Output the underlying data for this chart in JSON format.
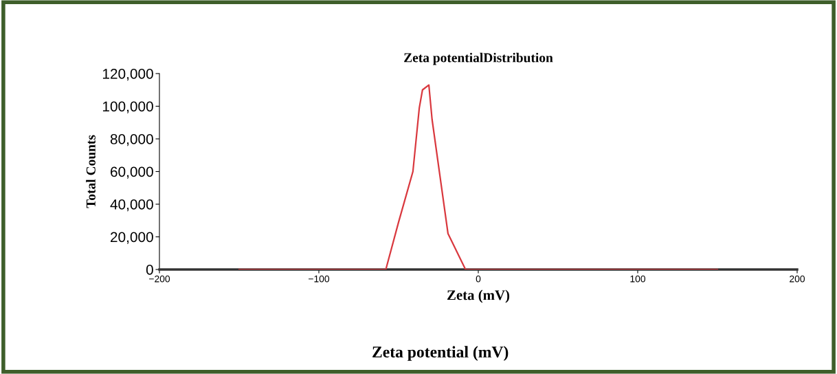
{
  "chart_data": {
    "type": "line",
    "title": "Zeta potentialDistribution",
    "xlabel": "Zeta (mV)",
    "ylabel": "Total Counts",
    "annotations": [
      "Zeta potential (mV)"
    ],
    "series": [
      {
        "color": "#d9383e",
        "x": [
          -150,
          -58,
          -50,
          -41,
          -37,
          -35,
          -31,
          -29,
          -24,
          -19,
          -8,
          150
        ],
        "values": [
          0,
          0,
          29000,
          60000,
          99000,
          110000,
          113000,
          92000,
          57000,
          22000,
          0,
          0
        ]
      }
    ],
    "xlim": [
      -200,
      200
    ],
    "xticks": [
      {
        "value": -200,
        "label": "−200"
      },
      {
        "value": -100,
        "label": "−100"
      },
      0,
      100,
      200
    ],
    "ylim": [
      0,
      120000
    ],
    "yticks": [
      0,
      {
        "value": 20000,
        "label": "20,000"
      },
      {
        "value": 40000,
        "label": "40,000"
      },
      {
        "value": 60000,
        "label": "60,000"
      },
      {
        "value": 80000,
        "label": "80,000"
      },
      {
        "value": 100000,
        "label": "100,000"
      },
      {
        "value": 120000,
        "label": "120,000"
      }
    ],
    "grid": false,
    "legend": false,
    "marker": "none",
    "line_style": "solid"
  }
}
